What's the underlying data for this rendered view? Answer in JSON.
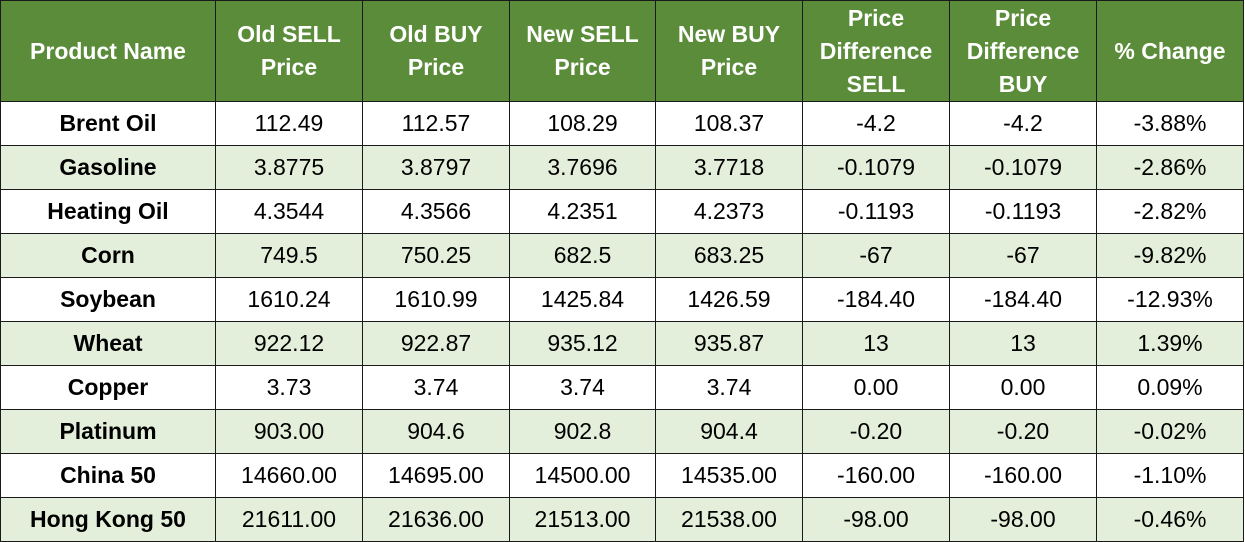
{
  "table": {
    "headers": [
      "Product Name",
      "Old SELL Price",
      "Old BUY Price",
      "New SELL Price",
      "New BUY Price",
      "Price Difference SELL",
      "Price Difference BUY",
      "% Change"
    ],
    "rows": [
      [
        "Brent Oil",
        "112.49",
        "112.57",
        "108.29",
        "108.37",
        "-4.2",
        "-4.2",
        "-3.88%"
      ],
      [
        "Gasoline",
        "3.8775",
        "3.8797",
        "3.7696",
        "3.7718",
        "-0.1079",
        "-0.1079",
        "-2.86%"
      ],
      [
        "Heating Oil",
        "4.3544",
        "4.3566",
        "4.2351",
        "4.2373",
        "-0.1193",
        "-0.1193",
        "-2.82%"
      ],
      [
        "Corn",
        "749.5",
        "750.25",
        "682.5",
        "683.25",
        "-67",
        "-67",
        "-9.82%"
      ],
      [
        "Soybean",
        "1610.24",
        "1610.99",
        "1425.84",
        "1426.59",
        "-184.40",
        "-184.40",
        "-12.93%"
      ],
      [
        "Wheat",
        "922.12",
        "922.87",
        "935.12",
        "935.87",
        "13",
        "13",
        "1.39%"
      ],
      [
        "Copper",
        "3.73",
        "3.74",
        "3.74",
        "3.74",
        "0.00",
        "0.00",
        "0.09%"
      ],
      [
        "Platinum",
        "903.00",
        "904.6",
        "902.8",
        "904.4",
        "-0.20",
        "-0.20",
        "-0.02%"
      ],
      [
        "China 50",
        "14660.00",
        "14695.00",
        "14500.00",
        "14535.00",
        "-160.00",
        "-160.00",
        "-1.10%"
      ],
      [
        "Hong Kong 50",
        "21611.00",
        "21636.00",
        "21513.00",
        "21538.00",
        "-98.00",
        "-98.00",
        "-0.46%"
      ]
    ]
  },
  "colors": {
    "header_bg": "#5a8c3a",
    "header_text": "#ffffff",
    "row_alt_bg": "#e4efdb",
    "border": "#1a1a1a"
  }
}
